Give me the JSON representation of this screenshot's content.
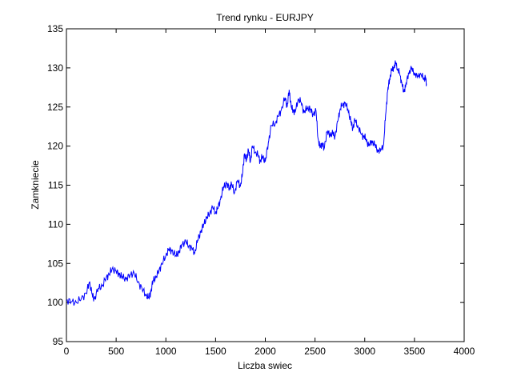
{
  "chart_data": {
    "type": "line",
    "title": "Trend rynku - EURJPY",
    "xlabel": "Liczba swiec",
    "ylabel": "Zamkniecie",
    "xlim": [
      0,
      4000
    ],
    "ylim": [
      95,
      135
    ],
    "xticks": [
      0,
      500,
      1000,
      1500,
      2000,
      2500,
      3000,
      3500,
      4000
    ],
    "yticks": [
      95,
      100,
      105,
      110,
      115,
      120,
      125,
      130,
      135
    ],
    "grid": false,
    "line_color": "#0000ff",
    "series": [
      {
        "x": [
          0,
          50,
          100,
          150,
          200,
          230,
          260,
          280,
          320,
          360,
          400,
          430,
          460,
          500,
          530,
          560,
          600,
          640,
          680,
          720,
          760,
          800,
          830,
          850,
          870,
          900,
          930,
          960,
          1000,
          1030,
          1060,
          1100,
          1130,
          1160,
          1200,
          1230,
          1260,
          1290,
          1320,
          1350,
          1380,
          1410,
          1440,
          1470,
          1500,
          1520,
          1550,
          1580,
          1610,
          1640,
          1660,
          1690,
          1720,
          1750,
          1770,
          1790,
          1810,
          1830,
          1850,
          1870,
          1900,
          1930,
          1950,
          1970,
          2000,
          2030,
          2060,
          2100,
          2130,
          2160,
          2200,
          2220,
          2240,
          2260,
          2280,
          2300,
          2330,
          2360,
          2390,
          2420,
          2450,
          2480,
          2510,
          2530,
          2550,
          2570,
          2590,
          2620,
          2650,
          2680,
          2700,
          2730,
          2750,
          2770,
          2800,
          2830,
          2860,
          2880,
          2900,
          2930,
          2960,
          2990,
          3010,
          3040,
          3070,
          3100,
          3130,
          3160,
          3190,
          3210,
          3230,
          3250,
          3270,
          3290,
          3310,
          3330,
          3350,
          3370,
          3390,
          3410,
          3440,
          3470,
          3500,
          3530,
          3560,
          3590,
          3610,
          3620
        ],
        "values": [
          100.3,
          100.1,
          100.0,
          100.5,
          101.2,
          102.6,
          101.0,
          100.4,
          101.8,
          102.1,
          103.2,
          103.6,
          104.3,
          104.0,
          103.6,
          103.3,
          103.0,
          103.5,
          103.8,
          102.6,
          101.8,
          100.9,
          100.6,
          101.4,
          102.8,
          103.2,
          104.1,
          104.9,
          106.0,
          106.8,
          106.6,
          106.0,
          106.4,
          107.4,
          107.8,
          107.2,
          107.0,
          106.3,
          108.0,
          109.0,
          110.0,
          110.8,
          111.4,
          112.2,
          111.4,
          112.0,
          113.2,
          114.8,
          115.2,
          114.6,
          115.2,
          114.0,
          115.6,
          114.9,
          116.4,
          119.0,
          118.2,
          119.5,
          118.0,
          120.0,
          119.2,
          118.8,
          118.0,
          118.7,
          118.0,
          120.4,
          122.6,
          122.9,
          123.8,
          124.6,
          126.2,
          125.0,
          127.2,
          125.0,
          124.6,
          124.3,
          126.0,
          125.6,
          124.3,
          124.9,
          124.7,
          124.1,
          124.5,
          121.0,
          119.8,
          120.4,
          119.6,
          121.8,
          121.5,
          121.6,
          121.2,
          123.2,
          124.6,
          125.2,
          125.5,
          124.8,
          123.1,
          122.3,
          123.3,
          122.6,
          121.6,
          121.2,
          121.0,
          120.0,
          120.7,
          120.1,
          119.5,
          119.4,
          120.2,
          124.0,
          127.0,
          128.6,
          129.6,
          130.1,
          130.6,
          129.9,
          129.3,
          128.2,
          127.0,
          127.5,
          129.4,
          129.8,
          129.4,
          128.8,
          129.3,
          128.6,
          128.8,
          128.0
        ]
      }
    ]
  }
}
